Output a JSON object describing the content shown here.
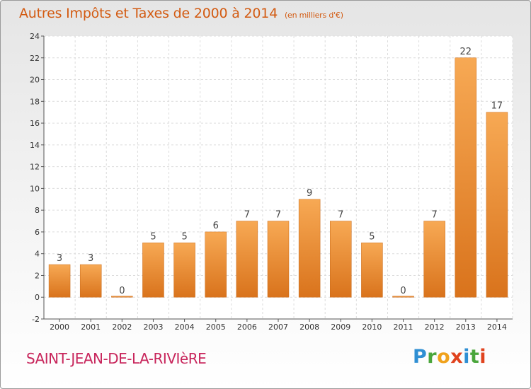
{
  "title": "Autres Impôts et Taxes de 2000 à 2014",
  "subtitle": "(en milliers d'€)",
  "commune": "SAINT-JEAN-DE-LA-RIVIèRE",
  "logo": {
    "letters": [
      "P",
      "r",
      "o",
      "x",
      "i",
      "t",
      "i"
    ],
    "colors": [
      "#2f8fd3",
      "#4aa63c",
      "#f0a21c",
      "#e0431e",
      "#2f8fd3",
      "#4aa63c",
      "#e0431e"
    ]
  },
  "colors": {
    "title": "#d35b12",
    "commune": "#c8265c",
    "bar_light": "#f7a954",
    "bar_dark": "#d9731c"
  },
  "chart_data": {
    "type": "bar",
    "title": "Autres Impôts et Taxes de 2000 à 2014",
    "subtitle": "(en milliers d'€)",
    "categories": [
      "2000",
      "2001",
      "2002",
      "2003",
      "2004",
      "2005",
      "2006",
      "2007",
      "2008",
      "2009",
      "2010",
      "2011",
      "2012",
      "2013",
      "2014"
    ],
    "values": [
      3,
      3,
      0,
      5,
      5,
      6,
      7,
      7,
      9,
      7,
      5,
      0,
      7,
      22,
      17
    ],
    "data_labels": [
      "3",
      "3",
      "0",
      "5",
      "5",
      "6",
      "7",
      "7",
      "9",
      "7",
      "5",
      "0",
      "7",
      "22",
      "17"
    ],
    "yticks": [
      "-2",
      "0",
      "2",
      "4",
      "6",
      "8",
      "10",
      "12",
      "14",
      "16",
      "18",
      "20",
      "22",
      "24"
    ],
    "ylim": [
      -2,
      24
    ],
    "grid": true,
    "legend": "none"
  }
}
